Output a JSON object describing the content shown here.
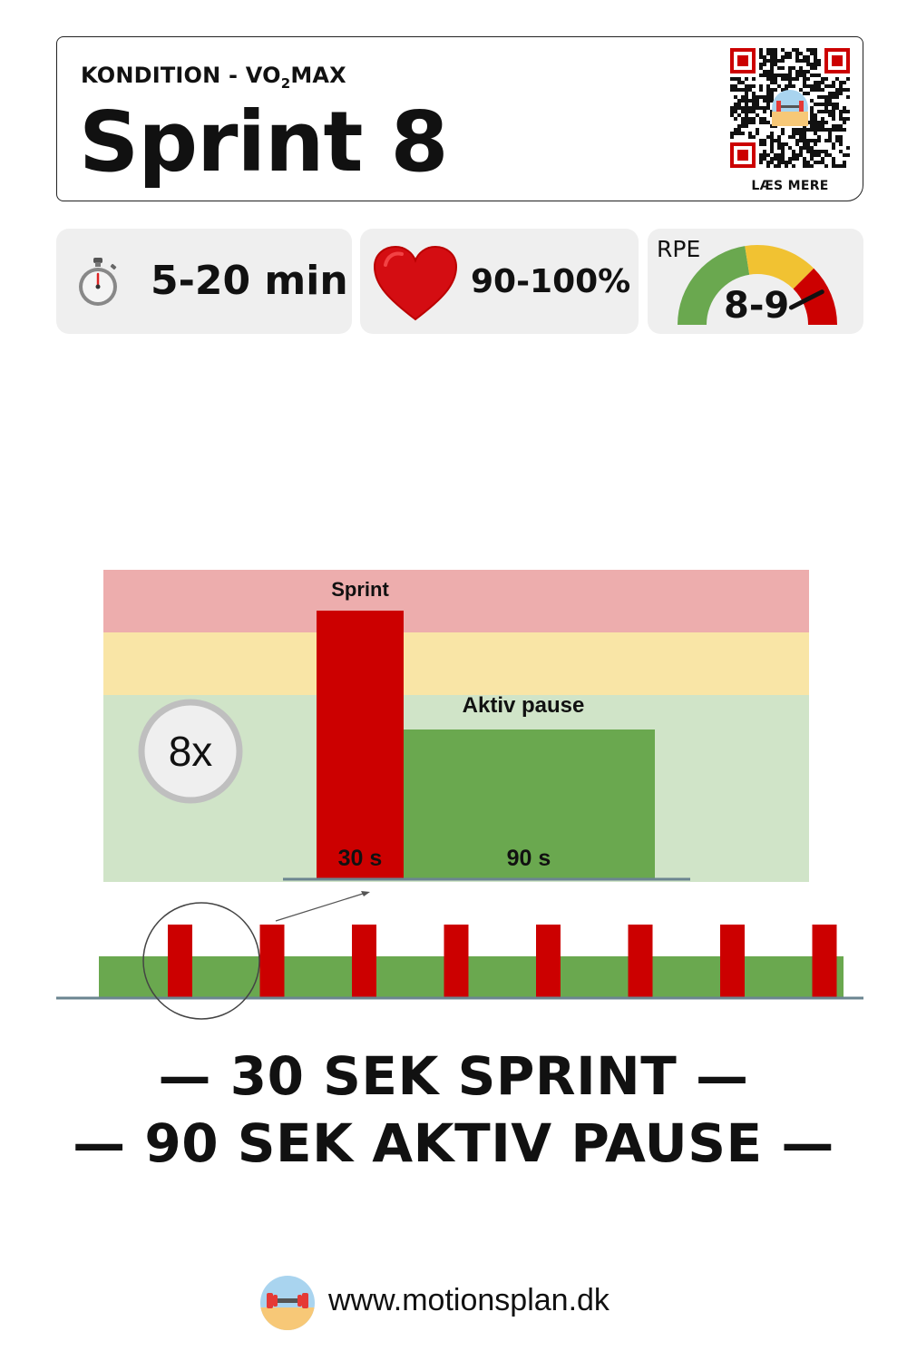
{
  "header": {
    "category_prefix": "KONDITION - VO",
    "category_sub": "2",
    "category_suffix": "MAX",
    "title": "Sprint 8",
    "read_more": "LÆS MERE"
  },
  "stats": {
    "duration": "5-20 min",
    "pulse": "90-100%",
    "rpe_label": "RPE",
    "rpe_value": "8-9",
    "rpe_level": 0.85
  },
  "interval": {
    "repetitions": "8x",
    "sprint_label": "Sprint",
    "sprint_duration": "30 s",
    "pause_label": "Aktiv pause",
    "pause_duration": "90 s",
    "sprint_count": 8
  },
  "colors": {
    "sprint": "#cc0000",
    "pause": "#6aa84f",
    "zone_high": "#edadad",
    "zone_mid": "#f9e5a6",
    "zone_low": "#d0e4c8",
    "gauge_green": "#6aa84f",
    "gauge_yellow": "#f1c232",
    "gauge_red": "#cc0000"
  },
  "captions": {
    "line1": "— 30 SEK SPRINT —",
    "line2": "— 90 SEK AKTIV PAUSE —"
  },
  "footer": {
    "url": "www.motionsplan.dk"
  },
  "icons": {
    "stopwatch": "stopwatch-icon",
    "heart": "heart-icon",
    "logo": "dumbbell-logo-icon",
    "qr": "qr-code-icon"
  }
}
